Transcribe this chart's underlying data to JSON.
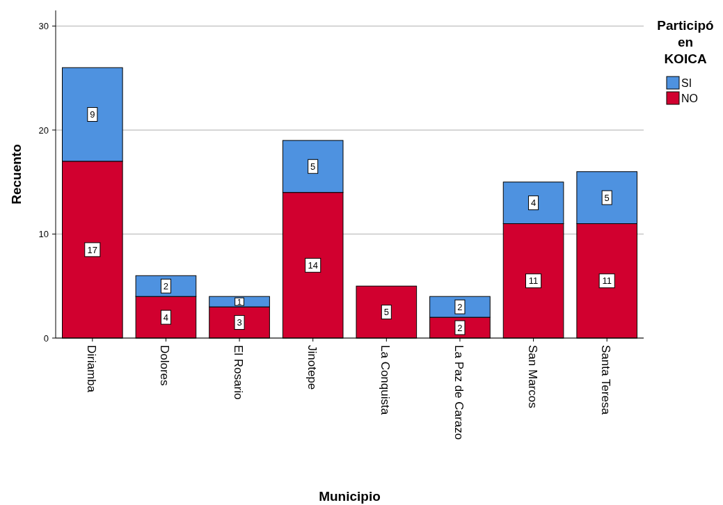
{
  "chart_data": {
    "type": "bar",
    "stacked": true,
    "xlabel": "Municipio",
    "ylabel": "Recuento",
    "legend_title": "Participó en KOICA",
    "legend": "top right",
    "grid": "y",
    "categories": [
      "Diriamba",
      "Dolores",
      "El Rosario",
      "Jinotepe",
      "La Conquista",
      "La Paz de Carazo",
      "San Marcos",
      "Santa Teresa"
    ],
    "ylim": [
      0,
      31.5
    ],
    "yticks": [
      0,
      10,
      20,
      30
    ],
    "series": [
      {
        "name": "NO",
        "color": "#d1002f",
        "values": [
          17,
          4,
          3,
          14,
          5,
          2,
          11,
          11
        ],
        "value_labels": [
          "17",
          "4",
          "3",
          "14",
          "5",
          "2",
          "11",
          "11"
        ]
      },
      {
        "name": "SI",
        "color": "#4e92e0",
        "values": [
          9,
          2,
          1,
          5,
          0,
          2,
          4,
          5
        ],
        "value_labels": [
          "9",
          "2",
          "1",
          "5",
          null,
          "2",
          "4",
          "5"
        ]
      }
    ]
  }
}
